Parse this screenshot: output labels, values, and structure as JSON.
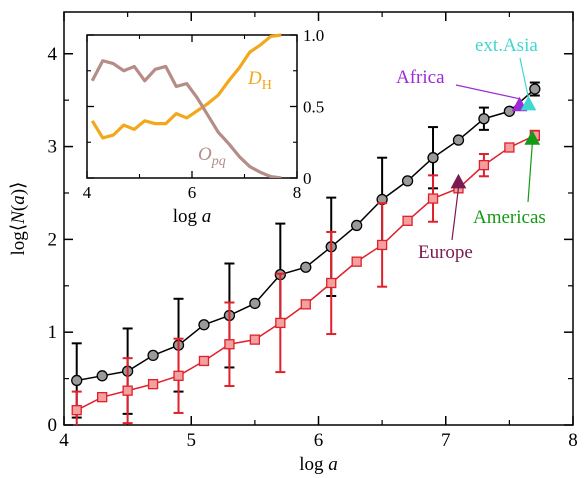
{
  "chart_data": [
    {
      "type": "line",
      "xlabel": "log a",
      "ylabel": "log⟨N(a)⟩",
      "xlim": [
        4,
        8
      ],
      "ylim": [
        0,
        4.45
      ],
      "xticks": [
        "4",
        "5",
        "6",
        "7",
        "8"
      ],
      "yticks": [
        "0",
        "1",
        "2",
        "3",
        "4"
      ],
      "series": [
        {
          "color": "#000000",
          "fill": "#9a9a9a",
          "marker": "circle",
          "x": [
            4.1,
            4.3,
            4.5,
            4.7,
            4.9,
            5.1,
            5.3,
            5.5,
            5.7,
            5.9,
            6.1,
            6.3,
            6.5,
            6.7,
            6.9,
            7.1,
            7.3,
            7.5,
            7.7
          ],
          "y": [
            0.48,
            0.53,
            0.58,
            0.75,
            0.86,
            1.08,
            1.18,
            1.31,
            1.62,
            1.7,
            1.92,
            2.15,
            2.43,
            2.63,
            2.88,
            3.07,
            3.3,
            3.38,
            3.62
          ],
          "err": [
            0.4,
            null,
            0.46,
            null,
            0.5,
            null,
            0.56,
            null,
            0.55,
            null,
            0.53,
            null,
            0.45,
            null,
            0.33,
            null,
            0.12,
            null,
            0.07
          ]
        },
        {
          "color": "#e0202a",
          "fill": "#f2a0a0",
          "marker": "square",
          "x": [
            4.1,
            4.3,
            4.5,
            4.7,
            4.9,
            5.1,
            5.3,
            5.5,
            5.7,
            5.9,
            6.1,
            6.3,
            6.5,
            6.7,
            6.9,
            7.1,
            7.3,
            7.5,
            7.7
          ],
          "y": [
            0.16,
            0.3,
            0.37,
            0.44,
            0.53,
            0.69,
            0.87,
            0.92,
            1.1,
            1.3,
            1.53,
            1.76,
            1.94,
            2.2,
            2.44,
            2.55,
            2.8,
            2.99,
            3.12
          ],
          "err": [
            0.2,
            null,
            0.35,
            null,
            0.4,
            null,
            0.45,
            null,
            0.53,
            null,
            0.55,
            null,
            0.45,
            null,
            0.25,
            null,
            0.12,
            null,
            0.05
          ]
        }
      ],
      "annotations": [
        {
          "text": "Africa",
          "x": 7.58,
          "y": 3.45,
          "color": "#9a2bd6",
          "marker_color": "#9a2bd6"
        },
        {
          "text": "ext.Asia",
          "x": 7.65,
          "y": 3.46,
          "color": "#3fd8d0",
          "marker_color": "#3fd8d0"
        },
        {
          "text": "Americas",
          "x": 7.68,
          "y": 3.09,
          "color": "#149a14",
          "marker_color": "#149a14"
        },
        {
          "text": "Europe",
          "x": 7.1,
          "y": 2.62,
          "color": "#7a1a50",
          "marker_color": "#7a1a50"
        }
      ]
    },
    {
      "type": "line",
      "xlabel": "log a",
      "xlim": [
        4,
        8
      ],
      "ylim": [
        0,
        1.0
      ],
      "xticks": [
        "4",
        "6",
        "8"
      ],
      "yticks": [
        "0",
        "0.5",
        "1.0"
      ],
      "series": [
        {
          "name": "D_H",
          "label_main": "D",
          "label_sub": "H",
          "color": "#f2a81a",
          "x": [
            4.1,
            4.3,
            4.5,
            4.7,
            4.9,
            5.1,
            5.3,
            5.5,
            5.7,
            5.9,
            6.1,
            6.3,
            6.5,
            6.7,
            6.9,
            7.1,
            7.3,
            7.5,
            7.7
          ],
          "y": [
            0.4,
            0.28,
            0.3,
            0.37,
            0.34,
            0.4,
            0.38,
            0.38,
            0.45,
            0.42,
            0.47,
            0.52,
            0.58,
            0.68,
            0.77,
            0.88,
            0.93,
            0.99,
            1.0
          ]
        },
        {
          "name": "O_pq",
          "label_main": "O",
          "label_sub": "pq",
          "color": "#b58c88",
          "x": [
            4.1,
            4.3,
            4.5,
            4.7,
            4.9,
            5.1,
            5.3,
            5.5,
            5.7,
            5.9,
            6.1,
            6.3,
            6.5,
            6.7,
            6.9,
            7.1,
            7.3,
            7.5,
            7.7
          ],
          "y": [
            0.68,
            0.82,
            0.8,
            0.75,
            0.78,
            0.68,
            0.76,
            0.78,
            0.64,
            0.66,
            0.56,
            0.44,
            0.32,
            0.24,
            0.15,
            0.08,
            0.04,
            0.01,
            0.0
          ]
        }
      ]
    }
  ]
}
